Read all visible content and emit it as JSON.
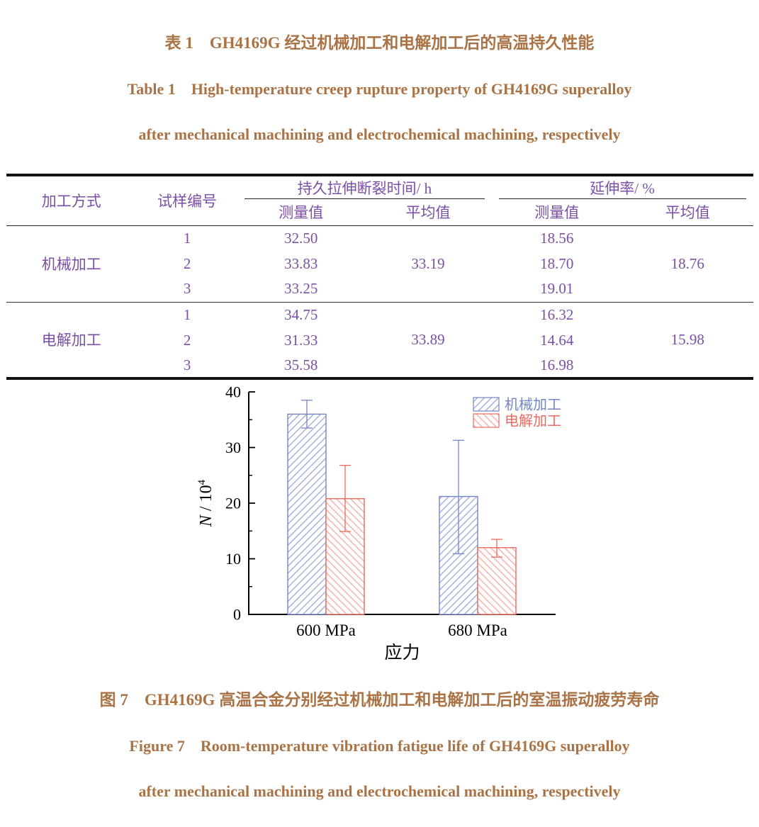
{
  "colors": {
    "caption_text": "#aa7346",
    "table_text": "#7b4fa5",
    "axis": "#000000",
    "series_blue": "#7486c4",
    "series_blue_hatch": "#9aa6d8",
    "series_red": "#ec6a60",
    "series_red_hatch": "#f2a9a3"
  },
  "table_block": {
    "title_zh": "表 1 GH4169G 经过机械加工和电解加工后的高温持久性能",
    "title_en_line1": "Table 1 High-temperature creep rupture property of GH4169G superalloy",
    "title_en_line2": "after mechanical machining and electrochemical machining, respectively",
    "headers": {
      "col_method": "加工方式",
      "col_sample": "试样编号",
      "group_rupture": "持久拉伸断裂时间/ h",
      "group_elongation": "延伸率/ %",
      "sub_measured": "测量值",
      "sub_average": "平均值"
    },
    "groups": [
      {
        "method": "机械加工",
        "rupture_avg": "33.19",
        "elongation_avg": "18.76",
        "rows": [
          {
            "sample": "1",
            "rupture_measured": "32.50",
            "elongation_measured": "18.56"
          },
          {
            "sample": "2",
            "rupture_measured": "33.83",
            "elongation_measured": "18.70"
          },
          {
            "sample": "3",
            "rupture_measured": "33.25",
            "elongation_measured": "19.01"
          }
        ]
      },
      {
        "method": "电解加工",
        "rupture_avg": "33.89",
        "elongation_avg": "15.98",
        "rows": [
          {
            "sample": "1",
            "rupture_measured": "34.75",
            "elongation_measured": "16.32"
          },
          {
            "sample": "2",
            "rupture_measured": "31.33",
            "elongation_measured": "14.64"
          },
          {
            "sample": "3",
            "rupture_measured": "35.58",
            "elongation_measured": "16.98"
          }
        ]
      }
    ]
  },
  "chart_data": {
    "type": "bar",
    "categories": [
      "600 MPa",
      "680 MPa"
    ],
    "series": [
      {
        "name": "机械加工",
        "color": "#7486c4",
        "hatch_color": "#9aa6d8",
        "hatch": "/",
        "values": [
          36.0,
          21.2
        ],
        "error_high": [
          38.5,
          31.3
        ],
        "error_low": [
          33.5,
          10.9
        ]
      },
      {
        "name": "电解加工",
        "color": "#ec6a60",
        "hatch_color": "#f2a9a3",
        "hatch": "\\",
        "values": [
          20.8,
          12.0
        ],
        "error_high": [
          26.8,
          13.5
        ],
        "error_low": [
          14.9,
          10.3
        ]
      }
    ],
    "title": "",
    "xlabel": "应力",
    "ylabel_main": "N / 10",
    "ylabel_exponent": "4",
    "ylim": [
      0,
      40
    ],
    "yticks": [
      0,
      10,
      20,
      30,
      40
    ],
    "yticks_minor": [
      5,
      15,
      25,
      35
    ],
    "grid": false,
    "legend_position": "top-right"
  },
  "figure_block": {
    "caption_zh": "图 7 GH4169G 高温合金分别经过机械加工和电解加工后的室温振动疲劳寿命",
    "caption_en_line1": "Figure 7 Room-temperature vibration fatigue life of GH4169G superalloy",
    "caption_en_line2": "after mechanical machining and electrochemical machining, respectively"
  }
}
